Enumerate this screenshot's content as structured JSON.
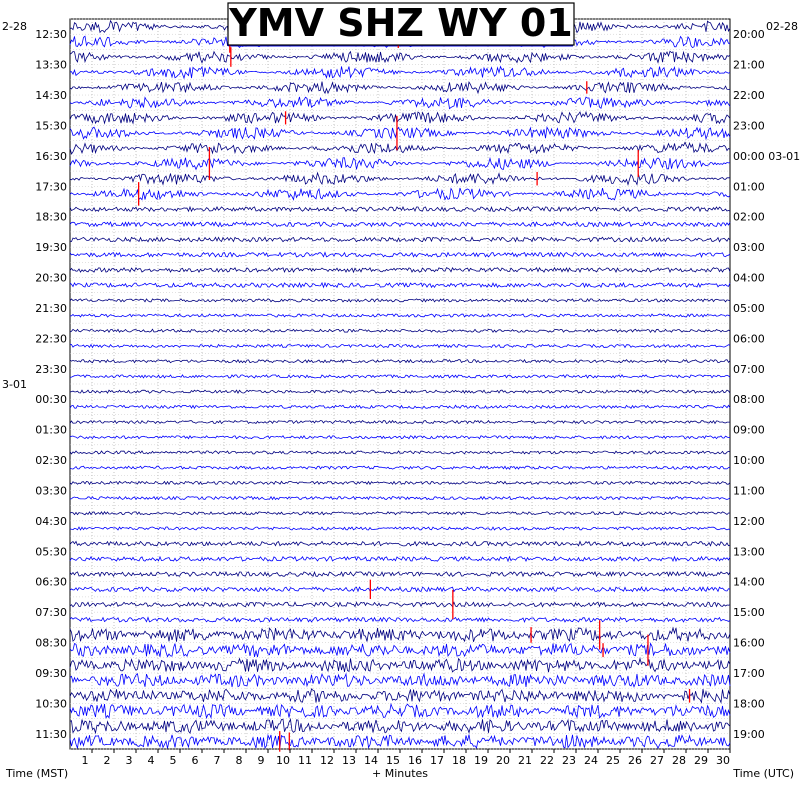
{
  "chart_data": {
    "type": "line",
    "title": "YMV SHZ WY 01",
    "xlabel": "+ Minutes",
    "left_axis_label": "Time (MST)",
    "right_axis_label": "Time (UTC)",
    "xlim": [
      0,
      30
    ],
    "x_ticks": [
      "1",
      "2",
      "3",
      "4",
      "5",
      "6",
      "7",
      "8",
      "9",
      "10",
      "11",
      "12",
      "13",
      "14",
      "15",
      "16",
      "17",
      "18",
      "19",
      "20",
      "21",
      "22",
      "23",
      "24",
      "25",
      "26",
      "27",
      "28",
      "29",
      "30"
    ],
    "left_date_labels": [
      "2-28",
      "3-01"
    ],
    "right_date_labels": [
      "02-28"
    ],
    "left_times": [
      "12:30",
      "13:30",
      "14:30",
      "15:30",
      "16:30",
      "17:30",
      "18:30",
      "19:30",
      "20:30",
      "21:30",
      "22:30",
      "23:30",
      "00:30",
      "01:30",
      "02:30",
      "03:30",
      "04:30",
      "05:30",
      "06:30",
      "07:30",
      "08:30",
      "09:30",
      "10:30",
      "11:30"
    ],
    "right_times": [
      "20:00",
      "21:00",
      "22:00",
      "23:00",
      "00:00 03-01",
      "01:00",
      "02:00",
      "03:00",
      "04:00",
      "05:00",
      "06:00",
      "07:00",
      "08:00",
      "09:00",
      "10:00",
      "11:00",
      "12:00",
      "13:00",
      "14:00",
      "15:00",
      "16:00",
      "17:00",
      "18:00",
      "19:00"
    ],
    "traces_per_hour": 2,
    "series_colors": [
      "#000080",
      "#0000ff"
    ],
    "clip_color": "#ff0000",
    "grid": true
  }
}
